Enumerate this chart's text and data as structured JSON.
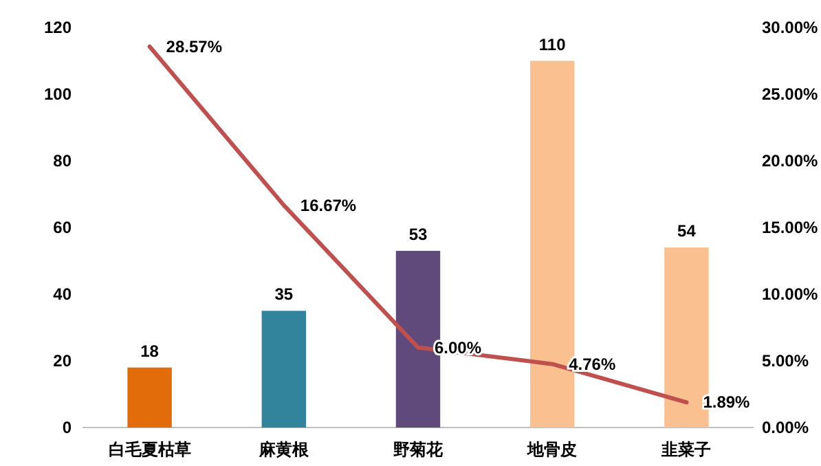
{
  "chart_data": {
    "type": "bar",
    "categories": [
      "白毛夏枯草",
      "麻黄根",
      "野菊花",
      "地骨皮",
      "韭菜子"
    ],
    "series": [
      {
        "colors": [
          "#e36c0a",
          "#31849b",
          "#604a7b",
          "#fac090",
          "#fac090"
        ],
        "values": [
          18,
          35,
          53,
          110,
          54
        ]
      },
      {
        "type": "line",
        "axis": "y2",
        "color": "#c0504d",
        "values": [
          28.57,
          16.67,
          6.0,
          4.76,
          1.89
        ],
        "value_labels": [
          "28.57%",
          "16.67%",
          "6.00%",
          "4.76%",
          "1.89%"
        ]
      }
    ],
    "data_labels": true,
    "ylim": [
      0,
      120
    ],
    "yticks": [
      0,
      20,
      40,
      60,
      80,
      100,
      120
    ],
    "y2lim": [
      0,
      30
    ],
    "y2ticks": [
      {
        "value": 0,
        "label": "0.00%"
      },
      {
        "value": 5,
        "label": "5.00%"
      },
      {
        "value": 10,
        "label": "10.00%"
      },
      {
        "value": 15,
        "label": "15.00%"
      },
      {
        "value": 20,
        "label": "20.00%"
      },
      {
        "value": 25,
        "label": "25.00%"
      },
      {
        "value": 30,
        "label": "30.00%"
      }
    ],
    "grid": false
  }
}
